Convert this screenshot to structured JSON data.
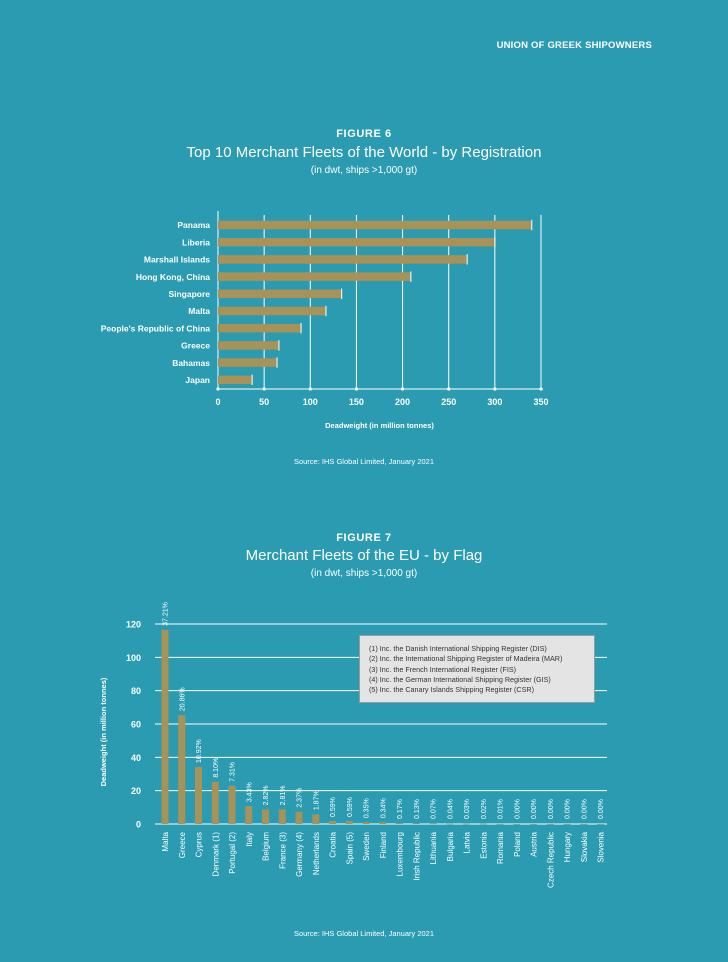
{
  "header": {
    "org": "UNION OF GREEK SHIPOWNERS"
  },
  "figures": [
    {
      "label": "FIGURE 6",
      "title": "Top 10 Merchant Fleets of the World - by Registration",
      "subtitle": "(in dwt, ships >1,000 gt)",
      "source": "Source: IHS Global Limited, January 2021"
    },
    {
      "label": "FIGURE 7",
      "title": "Merchant Fleets of the EU - by Flag",
      "subtitle": "(in dwt, ships >1,000 gt)",
      "source": "Source: IHS Global Limited, January 2021",
      "notes": [
        "(1) Inc. the Danish International Shipping Register (DIS)",
        "(2) Inc. the International Shipping Register of Madeira (MAR)",
        "(3) Inc. the French International Register (FIS)",
        "(4) Inc. the German International Shipping Register (GIS)",
        "(5) Inc. the Canary Islands Shipping Register (CSR)"
      ]
    }
  ],
  "colors": {
    "background": "#2a9bb1",
    "bar": "#a89257",
    "grid": "#ffffff",
    "text": "#ffffff"
  },
  "chart_data": [
    {
      "type": "bar",
      "orientation": "horizontal",
      "categories": [
        "Panama",
        "Liberia",
        "Marshall Islands",
        "Hong Kong, China",
        "Singapore",
        "Malta",
        "People's Republic of China",
        "Greece",
        "Bahamas",
        "Japan"
      ],
      "values": [
        340,
        300,
        270,
        209,
        134,
        117,
        90,
        66,
        64,
        37
      ],
      "xlabel": "Deadweight (in million tonnes)",
      "ylabel": "",
      "xlim": [
        0,
        350
      ],
      "xticks": [
        0,
        50,
        100,
        150,
        200,
        250,
        300,
        350
      ],
      "grid": "vertical"
    },
    {
      "type": "bar",
      "orientation": "vertical",
      "categories": [
        "Malta",
        "Greece",
        "Cyprus",
        "Denmark (1)",
        "Portugal (2)",
        "Italy",
        "Belgium",
        "France (3)",
        "Germany (4)",
        "Netherlands",
        "Croatia",
        "Spain (5)",
        "Sweden",
        "Finland",
        "Luxembourg",
        "Irish Republic",
        "Lithuania",
        "Bulgaria",
        "Latvia",
        "Estonia",
        "Romania",
        "Poland",
        "Austria",
        "Czech Republic",
        "Hungary",
        "Slovakia",
        "Slovenia"
      ],
      "values": [
        116.5,
        65.3,
        34.2,
        25.4,
        22.9,
        10.7,
        8.8,
        8.8,
        7.4,
        5.9,
        1.8,
        1.8,
        1.1,
        1.1,
        0.5,
        0.4,
        0.2,
        0.1,
        0.1,
        0.1,
        0.03,
        0.01,
        0.01,
        0.01,
        0.01,
        0.01,
        0.01
      ],
      "data_labels": [
        "37.21%",
        "20.86%",
        "10.92%",
        "8.10%",
        "7.31%",
        "3.43%",
        "2.82%",
        "2.81%",
        "2.37%",
        "1.87%",
        "0.59%",
        "0.59%",
        "0.35%",
        "0.34%",
        "0.17%",
        "0.13%",
        "0.07%",
        "0.04%",
        "0.03%",
        "0.02%",
        "0.01%",
        "0.00%",
        "0.00%",
        "0.00%",
        "0.00%",
        "0.00%",
        "0.00%"
      ],
      "xlabel": "",
      "ylabel": "Deadweight (in million tonnes)",
      "ylim": [
        0,
        120
      ],
      "yticks": [
        0,
        20,
        40,
        60,
        80,
        100,
        120
      ],
      "grid": "horizontal"
    }
  ]
}
